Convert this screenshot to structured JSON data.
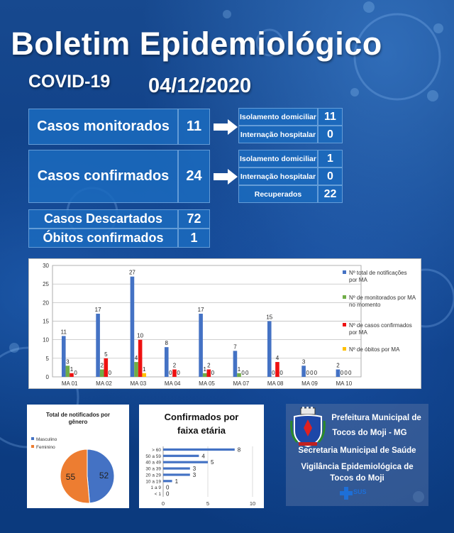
{
  "header": {
    "title": "Boletim Epidemiológico",
    "covid": "COVID-19",
    "date": "04/12/2020"
  },
  "cases": {
    "monitorados": {
      "label": "Casos monitorados",
      "value": "11",
      "sub": [
        {
          "label": "Isolamento domiciliar",
          "value": "11"
        },
        {
          "label": "Internação hospitalar",
          "value": "0"
        }
      ]
    },
    "confirmados": {
      "label": "Casos confirmados",
      "value": "24",
      "sub": [
        {
          "label": "Isolamento domiciliar",
          "value": "1"
        },
        {
          "label": "Internação hospitalar",
          "value": "0"
        },
        {
          "label": "Recuperados",
          "value": "22"
        }
      ]
    },
    "descartados": {
      "label": "Casos Descartados",
      "value": "72"
    },
    "obitos": {
      "label": "Óbitos confirmados",
      "value": "1"
    }
  },
  "chart_data": [
    {
      "type": "bar",
      "categories": [
        "MA 01",
        "MA 02",
        "MA 03",
        "MA 04",
        "MA 05",
        "MA 07",
        "MA 08",
        "MA 09",
        "MA 10"
      ],
      "ylim": [
        0,
        30
      ],
      "yticks": [
        "0",
        "5",
        "10",
        "15",
        "20",
        "25",
        "30"
      ],
      "series": [
        {
          "name": "Nº total de notificações por MA",
          "color": "#4472c4",
          "values": [
            11,
            17,
            27,
            8,
            17,
            7,
            15,
            3,
            2
          ]
        },
        {
          "name": "Nº de monitorados por MA no momento",
          "color": "#70ad47",
          "values": [
            3,
            2,
            4,
            0,
            1,
            1,
            0,
            0,
            0
          ]
        },
        {
          "name": "Nº de casos confirmados por MA",
          "color": "#ee1111",
          "values": [
            1,
            5,
            10,
            2,
            2,
            0,
            4,
            0,
            0
          ]
        },
        {
          "name": "Nº de óbitos por MA",
          "color": "#ffc000",
          "values": [
            0,
            0,
            1,
            0,
            0,
            0,
            0,
            0,
            0
          ]
        }
      ],
      "legend_position": "right",
      "grid": true
    },
    {
      "type": "pie",
      "title": "Total de notificados  por gênero",
      "slices": [
        {
          "name": "Masculino",
          "value": 52,
          "color": "#4472c4"
        },
        {
          "name": "Feminino",
          "value": 55,
          "color": "#ed7d31"
        }
      ],
      "legend_position": "left"
    },
    {
      "type": "bar",
      "orientation": "horizontal",
      "title": "Confirmados por faixa etária",
      "categories": [
        "> 60",
        "50 a 59",
        "40 a 49",
        "30 a 39",
        "20 a 29",
        "10 a 19",
        "1 a 9",
        "< 1"
      ],
      "values": [
        8,
        4,
        5,
        3,
        3,
        1,
        0,
        0
      ],
      "xlim": [
        0,
        10
      ],
      "xticks": [
        "0",
        "5",
        "10"
      ],
      "color": "#4472c4"
    }
  ],
  "footer": {
    "line1": "Prefeitura Municipal de",
    "line2": "Tocos do Moji - MG",
    "line3": "Secretaria Municipal de Saúde",
    "line4": "Vigilância Epidemiológica de",
    "line5": "Tocos do Moji",
    "sus": "SUS"
  }
}
